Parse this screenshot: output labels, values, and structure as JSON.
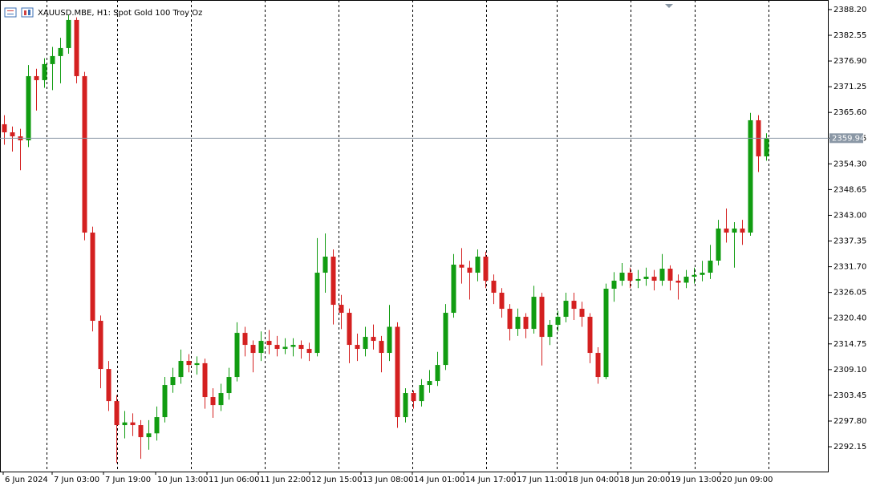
{
  "chart_data": {
    "type": "candlestick",
    "title": "XAUUSD.MBE, H1:  Spot Gold 100 Troy Oz",
    "up_color": "#119c11",
    "down_color": "#d42020",
    "price_line_color": "#8a97a5",
    "open": [
      2363.0,
      2361.23,
      2360.35,
      2359.47,
      2373.57,
      2372.69,
      2376.22,
      2377.98,
      2379.74,
      2385.91,
      2373.57,
      2339.2,
      2319.82,
      2309.24,
      2302.19,
      2296.91,
      2297.5,
      2296.91,
      2294.26,
      2295.1,
      2298.67,
      2305.72,
      2307.48,
      2311.01,
      2310.12,
      2310.5,
      2303.08,
      2301.31,
      2303.96,
      2307.48,
      2317.17,
      2314.53,
      2312.77,
      2315.41,
      2314.53,
      2313.65,
      2314.1,
      2314.53,
      2313.65,
      2312.77,
      2330.39,
      2333.92,
      2323.34,
      2321.58,
      2314.53,
      2313.65,
      2316.29,
      2315.41,
      2312.77,
      2318.5,
      2298.67,
      2303.96,
      2302.19,
      2305.72,
      2306.6,
      2310.12,
      2321.58,
      2332.16,
      2331.5,
      2330.39,
      2333.92,
      2328.63,
      2325.99,
      2322.46,
      2318.05,
      2320.7,
      2318.05,
      2325.1,
      2316.29,
      2318.94,
      2320.7,
      2324.22,
      2322.46,
      2320.7,
      2312.77,
      2307.48,
      2326.87,
      2328.63,
      2330.39,
      2328.63,
      2329.0,
      2329.51,
      2328.63,
      2331.27,
      2328.63,
      2328.2,
      2329.51,
      2329.9,
      2330.39,
      2333.04,
      2340.09,
      2339.2,
      2340.09,
      2339.2,
      2363.88,
      2355.95
    ],
    "high": [
      2365.0,
      2362.5,
      2362.0,
      2376.0,
      2375.2,
      2377.5,
      2380.0,
      2382.0,
      2387.0,
      2386.5,
      2374.5,
      2340.5,
      2321.0,
      2311.0,
      2303.5,
      2300.0,
      2299.5,
      2298.0,
      2298.0,
      2301.0,
      2307.5,
      2309.5,
      2313.5,
      2312.5,
      2312.0,
      2311.5,
      2305.0,
      2306.0,
      2309.5,
      2319.5,
      2318.5,
      2315.5,
      2317.5,
      2317.8,
      2316.5,
      2316.0,
      2316.0,
      2315.5,
      2315.0,
      2338.0,
      2339.0,
      2335.5,
      2325.5,
      2322.5,
      2317.0,
      2318.5,
      2319.0,
      2316.5,
      2323.3,
      2319.5,
      2305.0,
      2304.5,
      2307.0,
      2309.0,
      2313.0,
      2323.5,
      2334.5,
      2335.8,
      2333.0,
      2335.5,
      2335.0,
      2330.0,
      2327.0,
      2323.5,
      2322.5,
      2321.5,
      2327.5,
      2326.0,
      2320.0,
      2322.0,
      2326.0,
      2326.0,
      2324.0,
      2321.5,
      2314.0,
      2328.0,
      2330.5,
      2332.5,
      2331.5,
      2331.0,
      2331.5,
      2331.0,
      2334.5,
      2332.0,
      2330.0,
      2331.0,
      2331.5,
      2333.0,
      2336.5,
      2342.0,
      2344.5,
      2341.5,
      2342.0,
      2365.5,
      2365.0,
      2361.0
    ],
    "low": [
      2358.5,
      2357.0,
      2352.9,
      2358.0,
      2366.0,
      2371.0,
      2370.5,
      2372.0,
      2378.5,
      2372.0,
      2337.5,
      2317.5,
      2305.0,
      2300.0,
      2288.6,
      2294.0,
      2294.5,
      2289.5,
      2291.5,
      2293.5,
      2297.5,
      2304.0,
      2306.0,
      2308.5,
      2308.0,
      2300.5,
      2298.5,
      2300.0,
      2302.5,
      2306.5,
      2312.0,
      2308.5,
      2311.0,
      2312.5,
      2312.0,
      2312.5,
      2312.0,
      2311.5,
      2311.0,
      2312.0,
      2326.0,
      2319.0,
      2318.0,
      2310.5,
      2311.0,
      2312.0,
      2313.5,
      2308.5,
      2311.0,
      2296.3,
      2297.5,
      2300.5,
      2301.0,
      2304.0,
      2305.5,
      2309.0,
      2320.5,
      2328.0,
      2324.5,
      2328.5,
      2327.0,
      2323.5,
      2320.5,
      2315.5,
      2316.5,
      2316.0,
      2317.0,
      2310.0,
      2314.5,
      2317.5,
      2319.5,
      2320.0,
      2318.5,
      2310.5,
      2306.0,
      2307.0,
      2324.0,
      2327.5,
      2327.0,
      2327.0,
      2327.5,
      2326.5,
      2327.5,
      2326.5,
      2324.5,
      2327.0,
      2328.0,
      2328.5,
      2329.0,
      2332.0,
      2337.0,
      2331.5,
      2336.5,
      2338.5,
      2352.5,
      2355.0
    ],
    "close": [
      2361.23,
      2360.35,
      2359.47,
      2373.57,
      2372.69,
      2376.22,
      2377.98,
      2379.74,
      2385.91,
      2373.57,
      2339.2,
      2319.82,
      2309.24,
      2302.19,
      2296.91,
      2297.5,
      2296.91,
      2294.26,
      2295.1,
      2298.67,
      2305.72,
      2307.48,
      2311.01,
      2310.12,
      2310.5,
      2303.08,
      2301.31,
      2303.96,
      2307.48,
      2317.17,
      2314.53,
      2312.77,
      2315.41,
      2314.53,
      2313.65,
      2314.1,
      2314.53,
      2313.65,
      2312.77,
      2330.39,
      2333.92,
      2323.34,
      2321.58,
      2314.53,
      2313.65,
      2316.29,
      2315.41,
      2312.77,
      2318.5,
      2298.67,
      2303.96,
      2302.19,
      2305.72,
      2306.6,
      2310.12,
      2321.58,
      2332.16,
      2331.5,
      2330.39,
      2333.92,
      2328.63,
      2325.99,
      2322.46,
      2318.05,
      2320.7,
      2318.05,
      2325.1,
      2316.29,
      2318.94,
      2320.7,
      2324.22,
      2322.46,
      2320.7,
      2312.77,
      2307.48,
      2326.87,
      2328.63,
      2330.39,
      2328.63,
      2329.0,
      2329.51,
      2328.63,
      2331.27,
      2328.63,
      2328.2,
      2329.51,
      2329.9,
      2330.39,
      2333.04,
      2340.09,
      2339.2,
      2340.09,
      2339.2,
      2363.88,
      2355.95,
      2359.94
    ],
    "last_price": 2359.94,
    "ylim": [
      2286.7,
      2390.3
    ],
    "yticks": [
      {
        "value": 2388.2,
        "label": "2388.20"
      },
      2382.55,
      {
        "value": 2376.9,
        "label": "2376.90"
      },
      2371.25,
      {
        "value": 2365.6,
        "label": "2365.60"
      },
      2359.95,
      {
        "value": 2354.3,
        "label": "2354.30"
      },
      2348.65,
      {
        "value": 2343,
        "label": "2343.00"
      },
      2337.35,
      {
        "value": 2331.7,
        "label": "2331.70"
      },
      2326.05,
      {
        "value": 2320.4,
        "label": "2320.40"
      },
      2314.75,
      {
        "value": 2309.1,
        "label": "2309.10"
      },
      2303.45,
      {
        "value": 2297.8,
        "label": "2297.80"
      },
      2292.15
    ],
    "xticks": [
      {
        "value": -0.1,
        "label": "6 Jun 2024"
      },
      {
        "value": 6.0,
        "label": "7 Jun 03:00"
      },
      {
        "value": 12.4,
        "label": "7 Jun 19:00"
      },
      {
        "value": 18.9,
        "label": "10 Jun 13:00"
      },
      {
        "value": 25.3,
        "label": "11 Jun 06:00"
      },
      {
        "value": 31.7,
        "label": "11 Jun 22:00"
      },
      {
        "value": 38.1,
        "label": "12 Jun 15:00"
      },
      {
        "value": 44.5,
        "label": "13 Jun 08:00"
      },
      {
        "value": 50.9,
        "label": "14 Jun 01:00"
      },
      {
        "value": 57.3,
        "label": "14 Jun 17:00"
      },
      {
        "value": 63.7,
        "label": "17 Jun 11:00"
      },
      {
        "value": 70.1,
        "label": "18 Jun 04:00"
      },
      {
        "value": 76.5,
        "label": "18 Jun 20:00"
      },
      {
        "value": 82.9,
        "label": "19 Jun 13:00"
      },
      {
        "value": 89.3,
        "label": "20 Jun 09:00"
      }
    ]
  }
}
